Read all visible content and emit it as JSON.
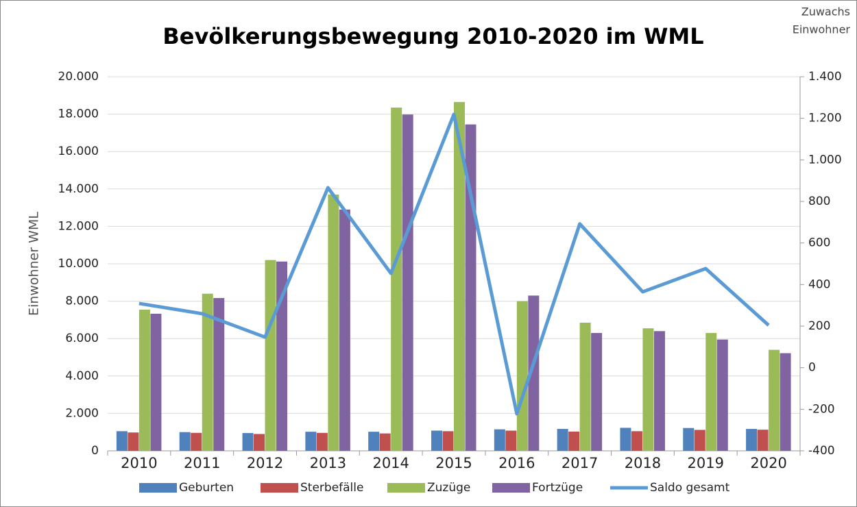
{
  "chart_data": {
    "type": "bar",
    "title": "Bevölkerungsbewegung 2010-2020 im WML",
    "ylabel": "Einwohner WML",
    "y2label": [
      "Zuwachs",
      "Einwohner"
    ],
    "categories": [
      "2010",
      "2011",
      "2012",
      "2013",
      "2014",
      "2015",
      "2016",
      "2017",
      "2018",
      "2019",
      "2020"
    ],
    "series": [
      {
        "name": "Geburten",
        "color": "#4f81bd",
        "values": [
          1050,
          1000,
          950,
          1020,
          1020,
          1080,
          1150,
          1170,
          1230,
          1220,
          1170
        ]
      },
      {
        "name": "Sterbefälle",
        "color": "#c0504d",
        "values": [
          980,
          960,
          900,
          960,
          930,
          1050,
          1080,
          1030,
          1050,
          1120,
          1130
        ]
      },
      {
        "name": "Zuzüge",
        "color": "#9bbb59",
        "values": [
          7550,
          8400,
          10200,
          13700,
          18350,
          18650,
          8000,
          6850,
          6550,
          6300,
          5400
        ]
      },
      {
        "name": "Fortzüge",
        "color": "#8064a2",
        "values": [
          7330,
          8170,
          10120,
          12900,
          17980,
          17450,
          8300,
          6300,
          6400,
          5950,
          5220
        ]
      },
      {
        "name": "Saldo gesamt",
        "color": "#5b9bd5",
        "type": "line",
        "axis": "y2",
        "values": [
          309,
          260,
          147,
          866,
          454,
          1219,
          -222,
          692,
          365,
          477,
          204
        ]
      }
    ],
    "ylim": [
      0,
      20000
    ],
    "yticks": [
      0,
      {
        "value": 2000,
        "label": "2.000"
      },
      {
        "value": 4000,
        "label": "4.000"
      },
      {
        "value": 6000,
        "label": "6.000"
      },
      {
        "value": 8000,
        "label": "8.000"
      },
      {
        "value": 10000,
        "label": "10.000"
      },
      {
        "value": 12000,
        "label": "12.000"
      },
      {
        "value": 14000,
        "label": "14.000"
      },
      {
        "value": 16000,
        "label": "16.000"
      },
      {
        "value": 18000,
        "label": "18.000"
      },
      {
        "value": 20000,
        "label": "20.000"
      }
    ],
    "y2lim": [
      -400,
      1400
    ],
    "y2ticks": [
      -400,
      -200,
      0,
      200,
      400,
      600,
      800,
      {
        "value": 1000,
        "label": "1.000"
      },
      {
        "value": 1200,
        "label": "1.200"
      },
      {
        "value": 1400,
        "label": "1.400"
      }
    ],
    "grid": true,
    "legend": "bottom"
  }
}
